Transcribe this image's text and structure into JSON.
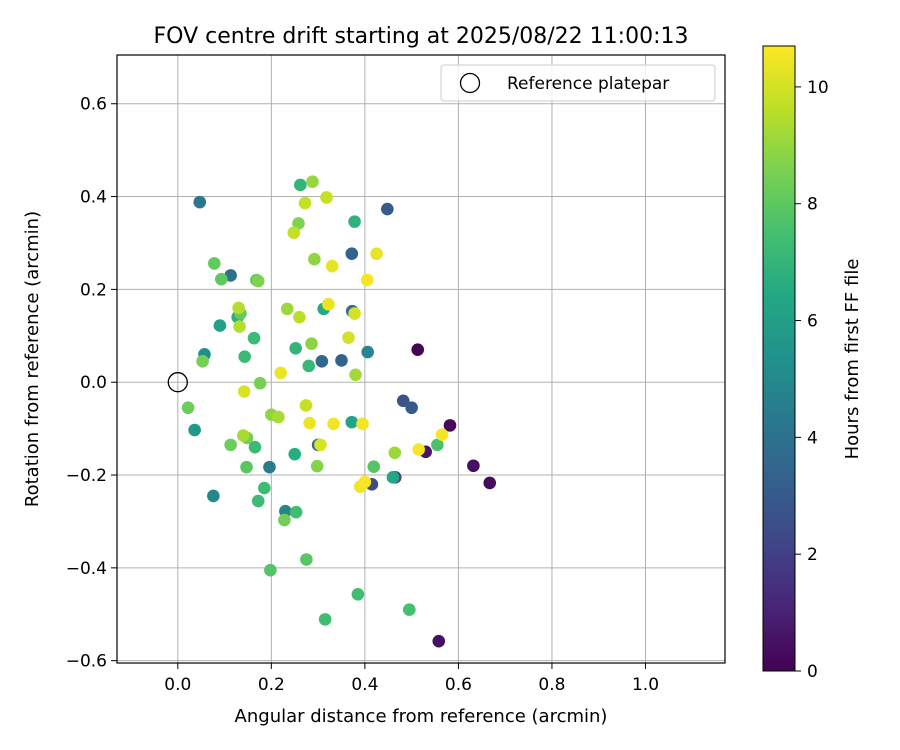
{
  "chart_data": {
    "type": "scatter",
    "title": "FOV centre drift starting at 2025/08/22 11:00:13",
    "xlabel": "Angular distance from reference (arcmin)",
    "ylabel": "Rotation from reference (arcmin)",
    "xlim": [
      -0.13,
      1.17
    ],
    "ylim": [
      -0.605,
      0.705
    ],
    "xticks": [
      "0.0",
      "0.2",
      "0.4",
      "0.6",
      "0.8",
      "1.0"
    ],
    "xtick_values": [
      0.0,
      0.2,
      0.4,
      0.6,
      0.8,
      1.0
    ],
    "yticks": [
      "−0.6",
      "−0.4",
      "−0.2",
      "0.0",
      "0.2",
      "0.4",
      "0.6"
    ],
    "ytick_values": [
      -0.6,
      -0.4,
      -0.2,
      0.0,
      0.2,
      0.4,
      0.6
    ],
    "grid": true,
    "legend": {
      "position": "top-right",
      "entries": [
        "Reference platepar"
      ]
    },
    "reference_point": {
      "x": 0.0,
      "y": 0.0
    },
    "colorbar": {
      "label": "Hours from first FF file",
      "colormap": "viridis",
      "range": [
        0,
        10.7
      ],
      "ticks": [
        "0",
        "2",
        "4",
        "6",
        "8",
        "10"
      ],
      "tick_values": [
        0,
        2,
        4,
        6,
        8,
        10
      ]
    },
    "points": [
      {
        "x": 0.513,
        "y": 0.07,
        "t": 0.1
      },
      {
        "x": 0.582,
        "y": -0.093,
        "t": 0.2
      },
      {
        "x": 0.667,
        "y": -0.217,
        "t": 0.3
      },
      {
        "x": 0.632,
        "y": -0.18,
        "t": 0.4
      },
      {
        "x": 0.558,
        "y": -0.558,
        "t": 0.5
      },
      {
        "x": 0.53,
        "y": -0.15,
        "t": 0.6
      },
      {
        "x": 0.465,
        "y": -0.205,
        "t": 2.2
      },
      {
        "x": 0.415,
        "y": -0.22,
        "t": 2.5
      },
      {
        "x": 0.482,
        "y": -0.04,
        "t": 2.7
      },
      {
        "x": 0.5,
        "y": -0.055,
        "t": 3.0
      },
      {
        "x": 0.448,
        "y": 0.373,
        "t": 3.0
      },
      {
        "x": 0.372,
        "y": 0.277,
        "t": 3.3
      },
      {
        "x": 0.35,
        "y": 0.047,
        "t": 3.4
      },
      {
        "x": 0.308,
        "y": 0.045,
        "t": 3.6
      },
      {
        "x": 0.3,
        "y": -0.135,
        "t": 3.6
      },
      {
        "x": 0.373,
        "y": 0.153,
        "t": 3.8
      },
      {
        "x": 0.113,
        "y": 0.23,
        "t": 4.0
      },
      {
        "x": 0.047,
        "y": 0.388,
        "t": 4.3
      },
      {
        "x": 0.196,
        "y": -0.183,
        "t": 4.4
      },
      {
        "x": 0.23,
        "y": -0.278,
        "t": 4.8
      },
      {
        "x": 0.406,
        "y": 0.065,
        "t": 4.9
      },
      {
        "x": 0.076,
        "y": -0.245,
        "t": 5.0
      },
      {
        "x": 0.057,
        "y": 0.06,
        "t": 5.3
      },
      {
        "x": 0.036,
        "y": -0.103,
        "t": 5.7
      },
      {
        "x": 0.09,
        "y": 0.122,
        "t": 6.1
      },
      {
        "x": 0.372,
        "y": -0.086,
        "t": 6.3
      },
      {
        "x": 0.46,
        "y": -0.205,
        "t": 6.4
      },
      {
        "x": 0.312,
        "y": 0.158,
        "t": 6.5
      },
      {
        "x": 0.25,
        "y": -0.155,
        "t": 6.6
      },
      {
        "x": 0.128,
        "y": 0.14,
        "t": 6.8
      },
      {
        "x": 0.378,
        "y": 0.346,
        "t": 6.9
      },
      {
        "x": 0.262,
        "y": 0.425,
        "t": 7.0
      },
      {
        "x": 0.252,
        "y": 0.073,
        "t": 7.0
      },
      {
        "x": 0.28,
        "y": 0.035,
        "t": 7.1
      },
      {
        "x": 0.143,
        "y": 0.055,
        "t": 7.2
      },
      {
        "x": 0.163,
        "y": 0.095,
        "t": 7.2
      },
      {
        "x": 0.165,
        "y": -0.14,
        "t": 7.2
      },
      {
        "x": 0.172,
        "y": -0.256,
        "t": 7.3
      },
      {
        "x": 0.185,
        "y": -0.228,
        "t": 7.3
      },
      {
        "x": 0.253,
        "y": -0.28,
        "t": 7.4
      },
      {
        "x": 0.385,
        "y": -0.457,
        "t": 7.4
      },
      {
        "x": 0.315,
        "y": -0.511,
        "t": 7.4
      },
      {
        "x": 0.495,
        "y": -0.49,
        "t": 7.5
      },
      {
        "x": 0.555,
        "y": -0.135,
        "t": 7.6
      },
      {
        "x": 0.419,
        "y": -0.182,
        "t": 7.8
      },
      {
        "x": 0.198,
        "y": -0.405,
        "t": 7.8
      },
      {
        "x": 0.275,
        "y": -0.382,
        "t": 7.9
      },
      {
        "x": 0.147,
        "y": -0.183,
        "t": 7.9
      },
      {
        "x": 0.168,
        "y": 0.22,
        "t": 8.0
      },
      {
        "x": 0.093,
        "y": 0.222,
        "t": 8.0
      },
      {
        "x": 0.078,
        "y": 0.256,
        "t": 8.1
      },
      {
        "x": 0.134,
        "y": 0.148,
        "t": 8.1
      },
      {
        "x": 0.022,
        "y": -0.055,
        "t": 8.3
      },
      {
        "x": 0.113,
        "y": -0.135,
        "t": 8.3
      },
      {
        "x": 0.148,
        "y": -0.12,
        "t": 8.4
      },
      {
        "x": 0.228,
        "y": -0.297,
        "t": 8.4
      },
      {
        "x": 0.176,
        "y": -0.002,
        "t": 8.5
      },
      {
        "x": 0.053,
        "y": 0.045,
        "t": 8.5
      },
      {
        "x": 0.172,
        "y": 0.218,
        "t": 8.6
      },
      {
        "x": 0.258,
        "y": 0.342,
        "t": 8.6
      },
      {
        "x": 0.298,
        "y": -0.181,
        "t": 8.7
      },
      {
        "x": 0.286,
        "y": 0.083,
        "t": 8.8
      },
      {
        "x": 0.292,
        "y": 0.265,
        "t": 8.9
      },
      {
        "x": 0.2,
        "y": -0.07,
        "t": 8.9
      },
      {
        "x": 0.288,
        "y": 0.432,
        "t": 9.0
      },
      {
        "x": 0.234,
        "y": 0.158,
        "t": 9.1
      },
      {
        "x": 0.464,
        "y": -0.152,
        "t": 9.1
      },
      {
        "x": 0.38,
        "y": 0.016,
        "t": 9.2
      },
      {
        "x": 0.14,
        "y": -0.115,
        "t": 9.3
      },
      {
        "x": 0.215,
        "y": -0.075,
        "t": 9.3
      },
      {
        "x": 0.13,
        "y": 0.16,
        "t": 9.5
      },
      {
        "x": 0.132,
        "y": 0.12,
        "t": 9.5
      },
      {
        "x": 0.26,
        "y": 0.14,
        "t": 9.6
      },
      {
        "x": 0.272,
        "y": 0.386,
        "t": 9.7
      },
      {
        "x": 0.248,
        "y": 0.322,
        "t": 9.7
      },
      {
        "x": 0.274,
        "y": -0.05,
        "t": 9.8
      },
      {
        "x": 0.318,
        "y": 0.398,
        "t": 9.8
      },
      {
        "x": 0.365,
        "y": 0.096,
        "t": 10.0
      },
      {
        "x": 0.378,
        "y": 0.148,
        "t": 10.0
      },
      {
        "x": 0.142,
        "y": -0.02,
        "t": 10.1
      },
      {
        "x": 0.305,
        "y": -0.135,
        "t": 10.1
      },
      {
        "x": 0.33,
        "y": 0.25,
        "t": 10.3
      },
      {
        "x": 0.425,
        "y": 0.277,
        "t": 10.3
      },
      {
        "x": 0.322,
        "y": 0.168,
        "t": 10.4
      },
      {
        "x": 0.22,
        "y": 0.02,
        "t": 10.4
      },
      {
        "x": 0.282,
        "y": -0.088,
        "t": 10.4
      },
      {
        "x": 0.333,
        "y": -0.09,
        "t": 10.5
      },
      {
        "x": 0.395,
        "y": -0.09,
        "t": 10.5
      },
      {
        "x": 0.39,
        "y": -0.225,
        "t": 10.5
      },
      {
        "x": 0.4,
        "y": -0.215,
        "t": 10.6
      },
      {
        "x": 0.405,
        "y": 0.22,
        "t": 10.6
      },
      {
        "x": 0.515,
        "y": -0.145,
        "t": 10.6
      },
      {
        "x": 0.565,
        "y": -0.113,
        "t": 10.6
      }
    ]
  }
}
